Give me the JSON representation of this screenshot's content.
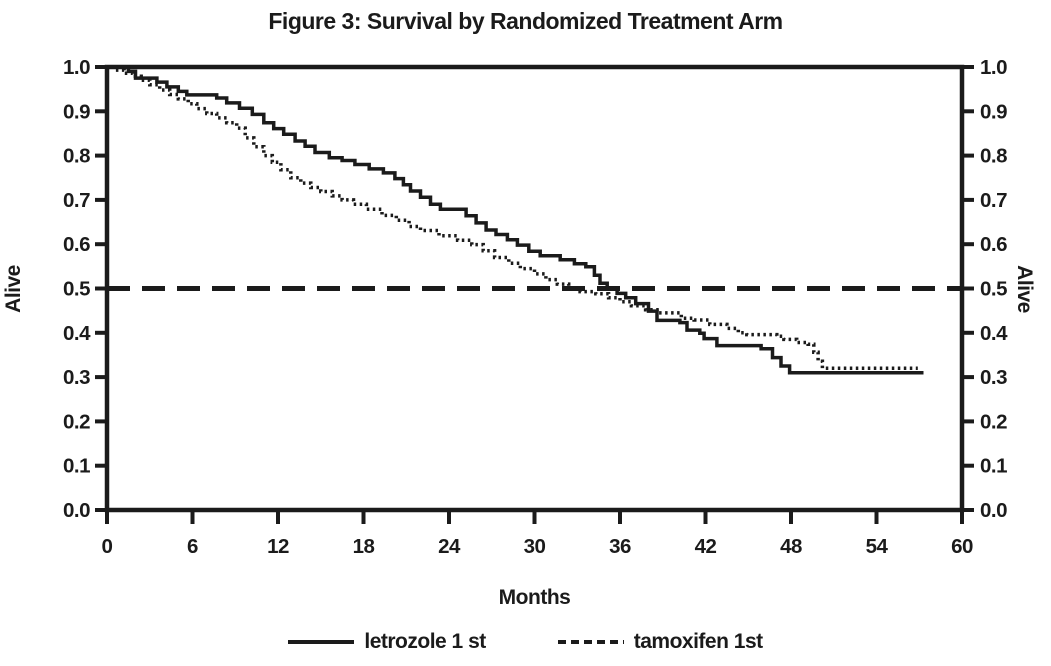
{
  "chart_data": {
    "type": "line",
    "subtype": "kaplan-meier-step-curves",
    "title": "Figure 3: Survival by Randomized Treatment Arm",
    "xlabel": "Months",
    "ylabel_left": "Alive",
    "ylabel_right": "Alive",
    "xlim": [
      0,
      60
    ],
    "ylim": [
      0.0,
      1.0
    ],
    "x_ticks": [
      0,
      6,
      12,
      18,
      24,
      30,
      36,
      42,
      48,
      54,
      60
    ],
    "x_tick_labels": [
      "0",
      "6",
      "12",
      "18",
      "24",
      "30",
      "36",
      "42",
      "48",
      "54",
      "60"
    ],
    "y_ticks": [
      0.0,
      0.1,
      0.2,
      0.3,
      0.4,
      0.5,
      0.6,
      0.7,
      0.8,
      0.9,
      1.0
    ],
    "y_tick_labels": [
      "0.0",
      "0.1",
      "0.2",
      "0.3",
      "0.4",
      "0.5",
      "0.6",
      "0.7",
      "0.8",
      "0.9",
      "1.0"
    ],
    "grid": false,
    "plot_border": true,
    "ink_color": "#1b1b1b",
    "background_color": "#ffffff",
    "legend_position": "bottom",
    "reference_line": {
      "y": 0.5,
      "style": "long-dash",
      "color": "#1b1b1b"
    },
    "series": [
      {
        "name": "letrozole 1 st",
        "style": "solid",
        "color": "#1b1b1b",
        "points": [
          [
            0,
            1.0
          ],
          [
            1.5,
            0.99
          ],
          [
            2,
            0.975
          ],
          [
            3.5,
            0.966
          ],
          [
            4.2,
            0.955
          ],
          [
            5,
            0.945
          ],
          [
            5.6,
            0.937
          ],
          [
            7.7,
            0.93
          ],
          [
            8.4,
            0.919
          ],
          [
            9.3,
            0.907
          ],
          [
            10.2,
            0.893
          ],
          [
            11,
            0.874
          ],
          [
            11.7,
            0.861
          ],
          [
            12.4,
            0.848
          ],
          [
            13.2,
            0.833
          ],
          [
            13.9,
            0.821
          ],
          [
            14.6,
            0.807
          ],
          [
            15.6,
            0.795
          ],
          [
            16.5,
            0.789
          ],
          [
            17.4,
            0.78
          ],
          [
            18.4,
            0.77
          ],
          [
            19.4,
            0.761
          ],
          [
            20.2,
            0.748
          ],
          [
            20.8,
            0.734
          ],
          [
            21.3,
            0.72
          ],
          [
            22,
            0.706
          ],
          [
            22.7,
            0.69
          ],
          [
            23.4,
            0.679
          ],
          [
            25.2,
            0.664
          ],
          [
            25.9,
            0.648
          ],
          [
            26.6,
            0.632
          ],
          [
            27.3,
            0.622
          ],
          [
            28.1,
            0.61
          ],
          [
            28.8,
            0.598
          ],
          [
            29.6,
            0.584
          ],
          [
            30.4,
            0.574
          ],
          [
            31.8,
            0.565
          ],
          [
            32.8,
            0.556
          ],
          [
            33.6,
            0.549
          ],
          [
            34.2,
            0.53
          ],
          [
            34.6,
            0.512
          ],
          [
            35.1,
            0.5
          ],
          [
            35.8,
            0.489
          ],
          [
            36.4,
            0.479
          ],
          [
            37.1,
            0.466
          ],
          [
            38,
            0.449
          ],
          [
            38.6,
            0.428
          ],
          [
            40.2,
            0.423
          ],
          [
            40.7,
            0.406
          ],
          [
            41.6,
            0.399
          ],
          [
            41.9,
            0.387
          ],
          [
            42.8,
            0.371
          ],
          [
            45.9,
            0.364
          ],
          [
            46.7,
            0.344
          ],
          [
            47.3,
            0.325
          ],
          [
            47.9,
            0.31
          ],
          [
            57.3,
            0.31
          ]
        ]
      },
      {
        "name": "tamoxifen 1st",
        "style": "dotted",
        "color": "#1b1b1b",
        "points": [
          [
            0,
            1.0
          ],
          [
            0.6,
            0.993
          ],
          [
            1.2,
            0.986
          ],
          [
            1.8,
            0.979
          ],
          [
            2.4,
            0.97
          ],
          [
            3,
            0.96
          ],
          [
            3.7,
            0.948
          ],
          [
            4.4,
            0.938
          ],
          [
            5,
            0.928
          ],
          [
            5.7,
            0.917
          ],
          [
            6.3,
            0.906
          ],
          [
            7,
            0.895
          ],
          [
            7.7,
            0.885
          ],
          [
            8.4,
            0.874
          ],
          [
            9.1,
            0.862
          ],
          [
            9.7,
            0.84
          ],
          [
            10.3,
            0.82
          ],
          [
            11,
            0.8
          ],
          [
            11.6,
            0.785
          ],
          [
            12.2,
            0.768
          ],
          [
            12.9,
            0.75
          ],
          [
            13.6,
            0.738
          ],
          [
            14.3,
            0.728
          ],
          [
            15,
            0.719
          ],
          [
            15.8,
            0.709
          ],
          [
            16.5,
            0.7
          ],
          [
            17.3,
            0.69
          ],
          [
            18.2,
            0.679
          ],
          [
            19.3,
            0.665
          ],
          [
            20.3,
            0.654
          ],
          [
            21.2,
            0.64
          ],
          [
            22,
            0.631
          ],
          [
            23.3,
            0.619
          ],
          [
            24.6,
            0.609
          ],
          [
            25.6,
            0.599
          ],
          [
            26.4,
            0.585
          ],
          [
            27.2,
            0.57
          ],
          [
            28.2,
            0.557
          ],
          [
            29,
            0.545
          ],
          [
            30,
            0.533
          ],
          [
            30.8,
            0.52
          ],
          [
            31.6,
            0.51
          ],
          [
            32.4,
            0.5
          ],
          [
            33.2,
            0.493
          ],
          [
            34.3,
            0.488
          ],
          [
            35.2,
            0.479
          ],
          [
            36,
            0.47
          ],
          [
            36.8,
            0.461
          ],
          [
            37.8,
            0.452
          ],
          [
            38.6,
            0.445
          ],
          [
            40.3,
            0.433
          ],
          [
            41.2,
            0.429
          ],
          [
            42.3,
            0.419
          ],
          [
            43.5,
            0.41
          ],
          [
            44.3,
            0.4
          ],
          [
            44.9,
            0.396
          ],
          [
            47,
            0.392
          ],
          [
            47.5,
            0.385
          ],
          [
            48.4,
            0.378
          ],
          [
            49.2,
            0.374
          ],
          [
            49.6,
            0.356
          ],
          [
            49.9,
            0.336
          ],
          [
            50.2,
            0.32
          ],
          [
            56.9,
            0.32
          ]
        ]
      }
    ]
  }
}
